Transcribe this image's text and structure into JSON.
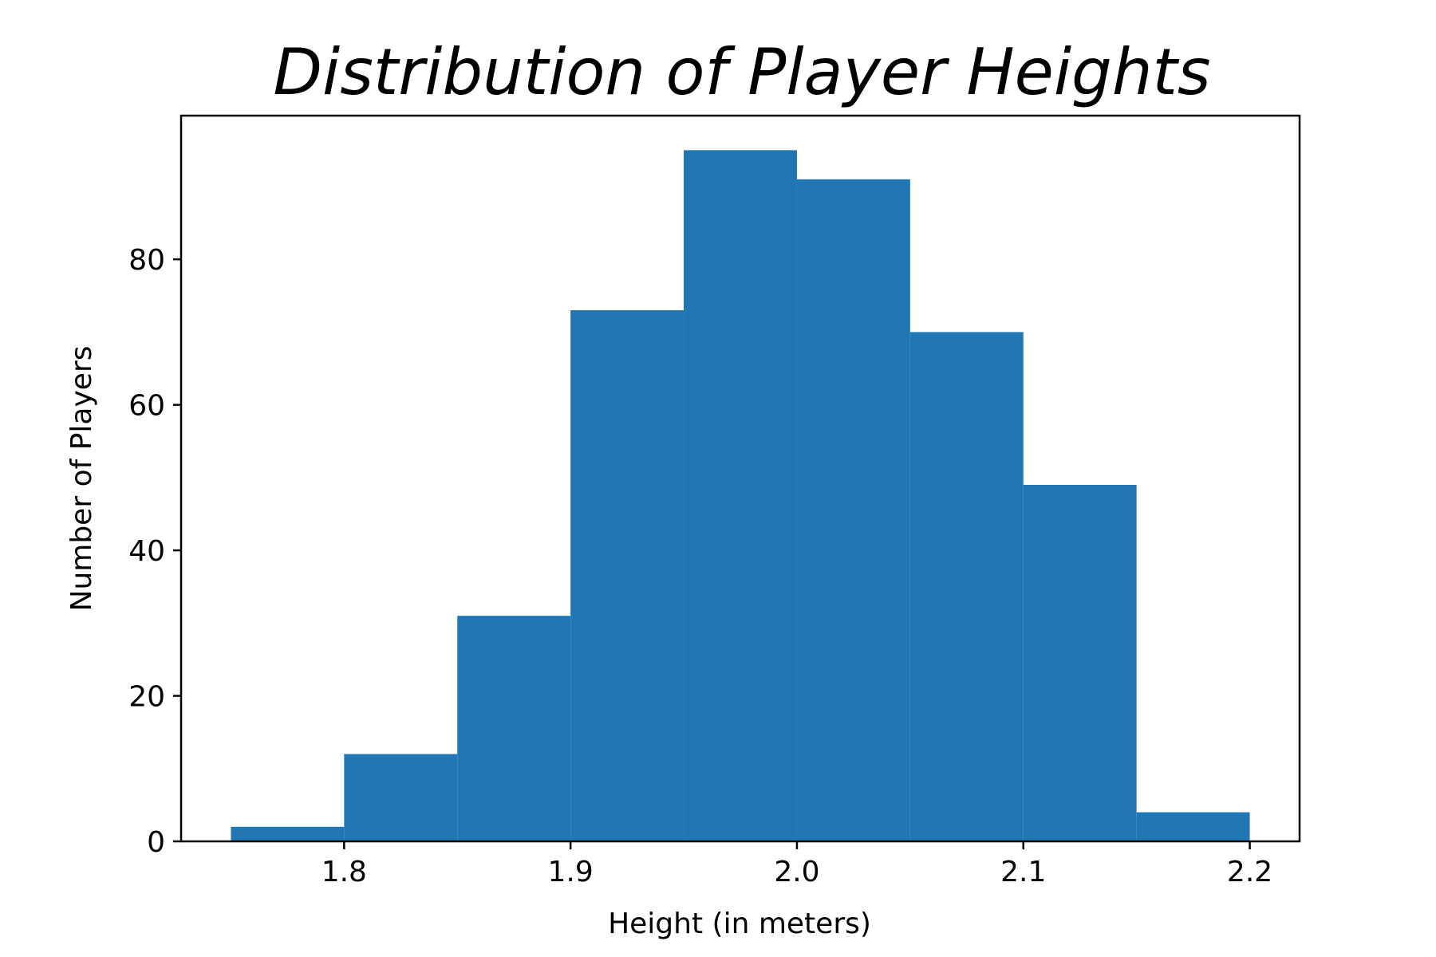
{
  "chart_data": {
    "type": "bar",
    "title": "Distribution of Player Heights",
    "xlabel": "Height (in meters)",
    "ylabel": "Number of Players",
    "xlim": [
      1.728,
      2.222
    ],
    "ylim": [
      0,
      99.75
    ],
    "x_ticks": [
      "1.8",
      "1.9",
      "2.0",
      "2.1",
      "2.2"
    ],
    "x_tick_values": [
      1.8,
      1.9,
      2.0,
      2.1,
      2.2
    ],
    "y_ticks": [
      "0",
      "20",
      "40",
      "60",
      "80"
    ],
    "y_tick_values": [
      0,
      20,
      40,
      60,
      80
    ],
    "bins": [
      {
        "start": 1.75,
        "end": 1.8,
        "count": 2
      },
      {
        "start": 1.8,
        "end": 1.85,
        "count": 12
      },
      {
        "start": 1.85,
        "end": 1.9,
        "count": 31
      },
      {
        "start": 1.9,
        "end": 1.95,
        "count": 73
      },
      {
        "start": 1.95,
        "end": 2.0,
        "count": 95
      },
      {
        "start": 2.0,
        "end": 2.05,
        "count": 91
      },
      {
        "start": 2.05,
        "end": 2.1,
        "count": 70
      },
      {
        "start": 2.1,
        "end": 2.15,
        "count": 49
      },
      {
        "start": 2.15,
        "end": 2.2,
        "count": 4
      }
    ],
    "bar_color": "#2077b4",
    "grid": false,
    "legend": "none"
  }
}
